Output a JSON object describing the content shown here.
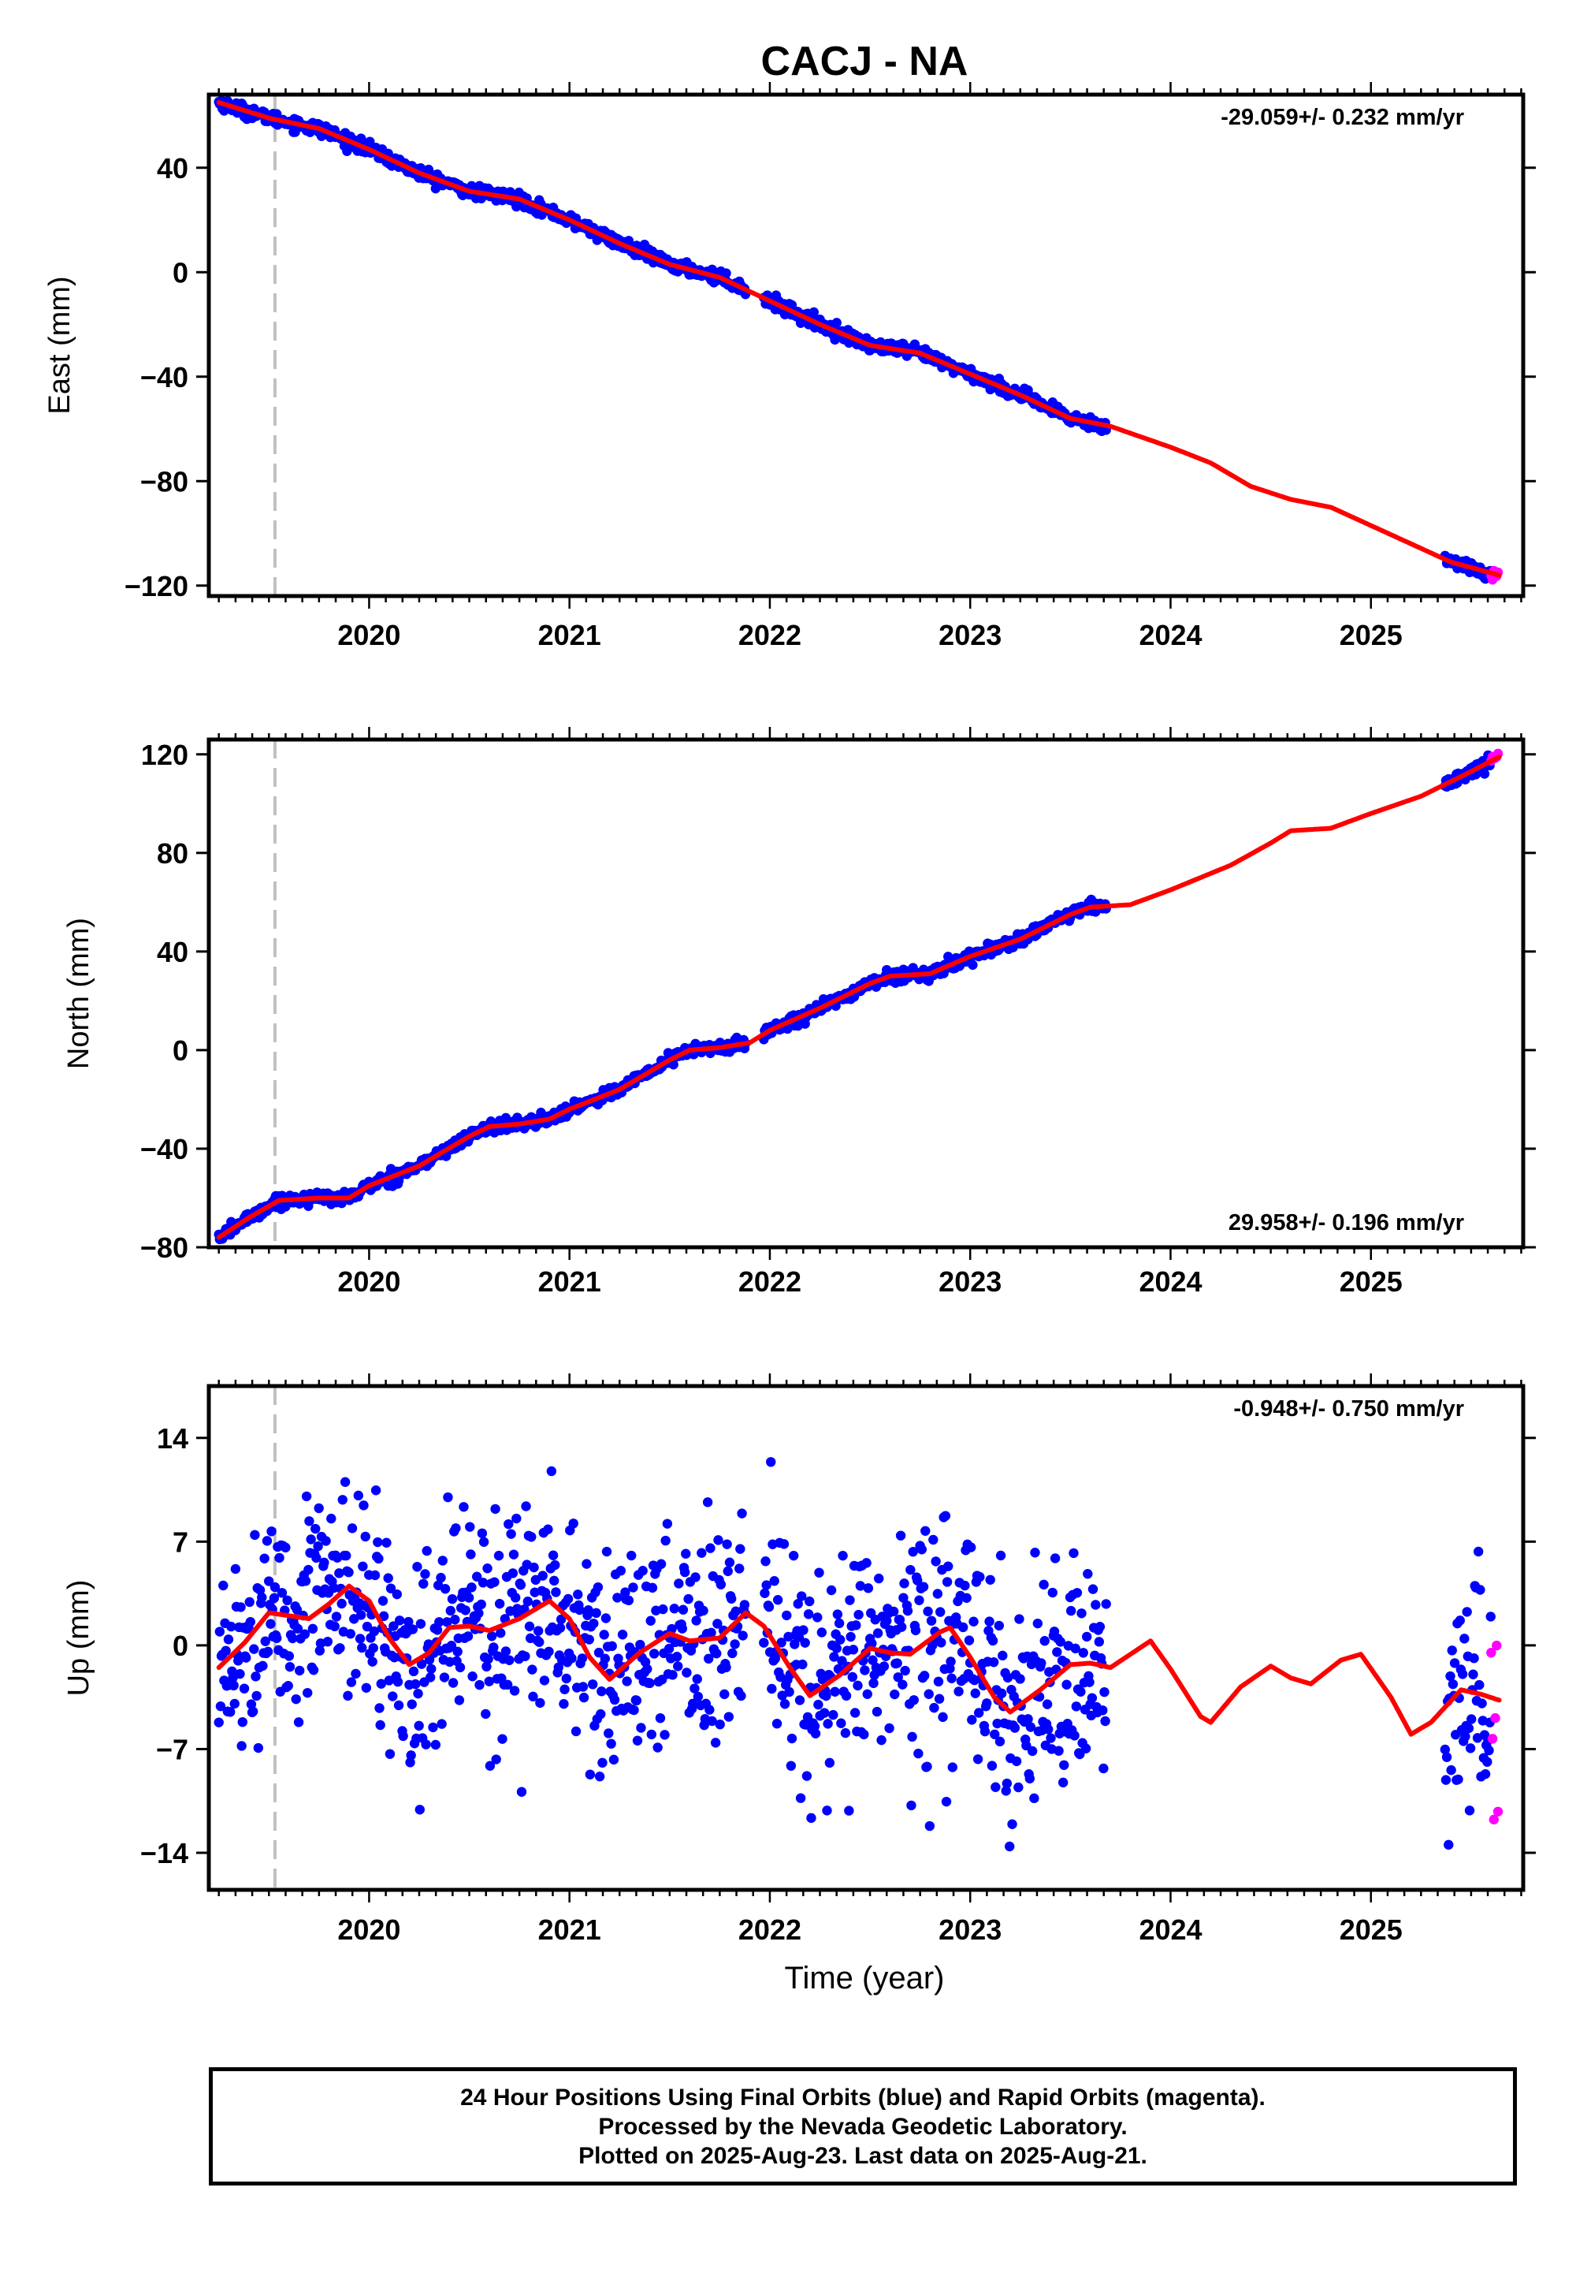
{
  "title": "CACJ - NA",
  "xlabel": "Time (year)",
  "colors": {
    "final_orbits": "#0000ff",
    "rapid_orbits": "#ff00ff",
    "model": "#ff0000",
    "marker_line": "#c0c0c0"
  },
  "footer": {
    "line1": "24 Hour Positions Using Final Orbits (blue) and Rapid Orbits (magenta).",
    "line2": "Processed by the Nevada Geodetic Laboratory.",
    "line3": "Plotted on 2025-Aug-23. Last data on 2025-Aug-21."
  },
  "chart_data": [
    {
      "type": "scatter",
      "ylabel": "East (mm)",
      "rate_label": "-29.059+/- 0.232 mm/yr",
      "xlim": [
        2019.2,
        2025.76
      ],
      "ylim": [
        -124,
        68
      ],
      "yticks": [
        40,
        0,
        -40,
        -80,
        -120
      ],
      "xticks": [
        2020,
        2021,
        2022,
        2023,
        2024,
        2025
      ],
      "grid": false,
      "equipment_change_year": 2019.53,
      "final_orbits_segments": [
        [
          2019.25,
          2021.88
        ],
        [
          2021.97,
          2023.68
        ],
        [
          2025.37,
          2025.6
        ]
      ],
      "rapid_orbits_segment": [
        2025.6,
        2025.64
      ],
      "model_curve": [
        [
          2019.25,
          65
        ],
        [
          2019.5,
          59
        ],
        [
          2019.75,
          55
        ],
        [
          2020.0,
          47
        ],
        [
          2020.25,
          38
        ],
        [
          2020.5,
          31
        ],
        [
          2020.75,
          28
        ],
        [
          2021.0,
          20
        ],
        [
          2021.25,
          11
        ],
        [
          2021.5,
          3
        ],
        [
          2021.75,
          -2
        ],
        [
          2022.0,
          -11
        ],
        [
          2022.25,
          -20
        ],
        [
          2022.5,
          -28
        ],
        [
          2022.75,
          -31
        ],
        [
          2023.0,
          -39
        ],
        [
          2023.25,
          -47
        ],
        [
          2023.5,
          -56
        ],
        [
          2023.7,
          -59
        ],
        [
          2024.0,
          -67
        ],
        [
          2024.2,
          -73
        ],
        [
          2024.4,
          -82
        ],
        [
          2024.6,
          -87
        ],
        [
          2024.8,
          -90
        ],
        [
          2025.0,
          -97
        ],
        [
          2025.2,
          -104
        ],
        [
          2025.4,
          -111
        ],
        [
          2025.64,
          -116
        ]
      ]
    },
    {
      "type": "scatter",
      "ylabel": "North (mm)",
      "rate_label": "29.958+/- 0.196 mm/yr",
      "xlim": [
        2019.2,
        2025.76
      ],
      "ylim": [
        -80,
        126
      ],
      "yticks": [
        120,
        80,
        40,
        0,
        -40,
        -80
      ],
      "xticks": [
        2020,
        2021,
        2022,
        2023,
        2024,
        2025
      ],
      "grid": false,
      "equipment_change_year": 2019.53,
      "final_orbits_segments": [
        [
          2019.25,
          2021.88
        ],
        [
          2021.97,
          2023.68
        ],
        [
          2025.37,
          2025.6
        ]
      ],
      "rapid_orbits_segment": [
        2025.6,
        2025.64
      ],
      "model_curve": [
        [
          2019.25,
          -76
        ],
        [
          2019.4,
          -68
        ],
        [
          2019.55,
          -61
        ],
        [
          2019.75,
          -60
        ],
        [
          2019.9,
          -60
        ],
        [
          2020.0,
          -55
        ],
        [
          2020.25,
          -47
        ],
        [
          2020.5,
          -35
        ],
        [
          2020.6,
          -31
        ],
        [
          2020.75,
          -30
        ],
        [
          2020.9,
          -28
        ],
        [
          2021.0,
          -24
        ],
        [
          2021.25,
          -16
        ],
        [
          2021.5,
          -4
        ],
        [
          2021.6,
          0
        ],
        [
          2021.75,
          1
        ],
        [
          2021.9,
          3
        ],
        [
          2022.0,
          8
        ],
        [
          2022.25,
          17
        ],
        [
          2022.5,
          27
        ],
        [
          2022.6,
          30
        ],
        [
          2022.8,
          31
        ],
        [
          2023.0,
          38
        ],
        [
          2023.25,
          45
        ],
        [
          2023.5,
          55
        ],
        [
          2023.6,
          58
        ],
        [
          2023.8,
          59
        ],
        [
          2024.0,
          65
        ],
        [
          2024.3,
          75
        ],
        [
          2024.5,
          84
        ],
        [
          2024.6,
          89
        ],
        [
          2024.8,
          90
        ],
        [
          2025.0,
          96
        ],
        [
          2025.25,
          103
        ],
        [
          2025.5,
          113
        ],
        [
          2025.64,
          119
        ]
      ]
    },
    {
      "type": "scatter",
      "ylabel": "Up (mm)",
      "rate_label": "-0.948+/- 0.750 mm/yr",
      "xlim": [
        2019.2,
        2025.76
      ],
      "ylim": [
        -16.5,
        17.5
      ],
      "yticks": [
        14,
        7,
        0,
        -7,
        -14
      ],
      "xticks": [
        2020,
        2021,
        2022,
        2023,
        2024,
        2025
      ],
      "grid": false,
      "equipment_change_year": 2019.53,
      "final_orbits_segments": [
        [
          2019.25,
          2021.88
        ],
        [
          2021.97,
          2023.68
        ],
        [
          2025.37,
          2025.6
        ]
      ],
      "rapid_orbits_segment": [
        2025.6,
        2025.64
      ],
      "model_curve": [
        [
          2019.25,
          -1.5
        ],
        [
          2019.38,
          0.2
        ],
        [
          2019.5,
          2.2
        ],
        [
          2019.6,
          2.0
        ],
        [
          2019.7,
          1.8
        ],
        [
          2019.8,
          2.8
        ],
        [
          2019.9,
          4.0
        ],
        [
          2020.0,
          3.0
        ],
        [
          2020.1,
          0.5
        ],
        [
          2020.2,
          -1.3
        ],
        [
          2020.3,
          -0.5
        ],
        [
          2020.4,
          1.2
        ],
        [
          2020.5,
          1.3
        ],
        [
          2020.6,
          1.0
        ],
        [
          2020.75,
          1.8
        ],
        [
          2020.9,
          3.0
        ],
        [
          2021.0,
          1.8
        ],
        [
          2021.1,
          -0.8
        ],
        [
          2021.2,
          -2.3
        ],
        [
          2021.35,
          -0.5
        ],
        [
          2021.5,
          0.8
        ],
        [
          2021.6,
          0.3
        ],
        [
          2021.75,
          0.5
        ],
        [
          2021.88,
          2.2
        ],
        [
          2021.97,
          1.3
        ],
        [
          2022.1,
          -1.5
        ],
        [
          2022.2,
          -3.4
        ],
        [
          2022.35,
          -2.0
        ],
        [
          2022.5,
          -0.2
        ],
        [
          2022.6,
          -0.5
        ],
        [
          2022.7,
          -0.6
        ],
        [
          2022.85,
          0.9
        ],
        [
          2022.9,
          1.2
        ],
        [
          2023.0,
          -0.8
        ],
        [
          2023.12,
          -3.5
        ],
        [
          2023.2,
          -4.5
        ],
        [
          2023.35,
          -3.0
        ],
        [
          2023.5,
          -1.3
        ],
        [
          2023.6,
          -1.2
        ],
        [
          2023.7,
          -1.5
        ],
        [
          2023.8,
          -0.6
        ],
        [
          2023.9,
          0.3
        ],
        [
          2024.0,
          -1.6
        ],
        [
          2024.15,
          -4.8
        ],
        [
          2024.2,
          -5.2
        ],
        [
          2024.35,
          -2.8
        ],
        [
          2024.5,
          -1.4
        ],
        [
          2024.6,
          -2.2
        ],
        [
          2024.7,
          -2.6
        ],
        [
          2024.85,
          -1.0
        ],
        [
          2024.95,
          -0.6
        ],
        [
          2025.1,
          -3.5
        ],
        [
          2025.2,
          -6.0
        ],
        [
          2025.3,
          -5.2
        ],
        [
          2025.45,
          -3.0
        ],
        [
          2025.55,
          -3.3
        ],
        [
          2025.64,
          -3.7
        ]
      ]
    }
  ]
}
